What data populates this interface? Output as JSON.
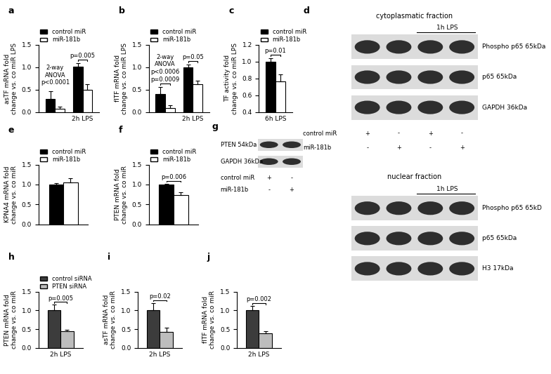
{
  "chart_data": [
    {
      "panel": "a",
      "type": "bar",
      "ylabel": "asTF mRNA fold\nchange vs. co miR LPS",
      "categories": [
        null,
        "2h LPS"
      ],
      "series": [
        {
          "name": "control miR",
          "color": "#000000",
          "values": [
            0.3,
            1.02
          ],
          "errors": [
            0.17,
            0.07
          ]
        },
        {
          "name": "miR-181b",
          "color": "#ffffff",
          "values": [
            0.08,
            0.5
          ],
          "errors": [
            0.05,
            0.13
          ]
        }
      ],
      "ylim": [
        0,
        1.5
      ],
      "yticks": [
        {
          "value": 0,
          "label": "0.0"
        },
        0.5,
        {
          "value": 1.0,
          "label": "1.0"
        },
        1.5
      ],
      "legend": "upper left",
      "note": {
        "text": "2-way\nANOVA\np<0.0001",
        "category": 0
      },
      "annotations": [
        {
          "text": "p=0.005",
          "category": 1
        }
      ]
    },
    {
      "panel": "b",
      "type": "bar",
      "ylabel": "flTF mRNA fold\nchange vs. co miR LPS",
      "categories": [
        null,
        "2h LPS"
      ],
      "series": [
        {
          "name": "control miR",
          "color": "#000000",
          "values": [
            0.41,
            1.0
          ],
          "errors": [
            0.15,
            0.06
          ]
        },
        {
          "name": "miR-181b",
          "color": "#ffffff",
          "values": [
            0.1,
            0.63
          ],
          "errors": [
            0.05,
            0.07
          ]
        }
      ],
      "ylim": [
        0,
        1.5
      ],
      "yticks": [
        {
          "value": 0,
          "label": "0.0"
        },
        0.5,
        {
          "value": 1.0,
          "label": "1.0"
        },
        1.5
      ],
      "legend": "upper left",
      "note": {
        "text": "2-way\nANOVA\np<0.0006",
        "category": 0
      },
      "annotations": [
        {
          "text": "p=0.0009",
          "category": 0
        },
        {
          "text": "p=0.05",
          "category": 1
        }
      ]
    },
    {
      "panel": "c",
      "type": "bar",
      "ylabel": "TF activity fold\nchange vs. co miR LPS",
      "categories": [
        "6h LPS"
      ],
      "series": [
        {
          "name": "control miR",
          "color": "#000000",
          "values": [
            1.0
          ],
          "errors": [
            0.04
          ]
        },
        {
          "name": "miR-181b",
          "color": "#ffffff",
          "values": [
            0.77
          ],
          "errors": [
            0.08
          ]
        }
      ],
      "ylim": [
        0.4,
        1.2
      ],
      "yticks": [
        0.4,
        0.6,
        0.8,
        {
          "value": 1.0,
          "label": "1.0"
        },
        1.2
      ],
      "legend": "upper left",
      "annotations": [
        {
          "text": "p=0.01",
          "category": 0
        }
      ]
    },
    {
      "panel": "e",
      "type": "bar",
      "ylabel": "KPNA4 mRNA fold\nchange vs. co miR",
      "categories": [
        null
      ],
      "series": [
        {
          "name": "control miR",
          "color": "#000000",
          "values": [
            1.0
          ],
          "errors": [
            0.03
          ]
        },
        {
          "name": "miR-181b",
          "color": "#ffffff",
          "values": [
            1.05
          ],
          "errors": [
            0.1
          ]
        }
      ],
      "ylim": [
        0,
        1.5
      ],
      "yticks": [
        {
          "value": 0,
          "label": "0.0"
        },
        0.5,
        {
          "value": 1.0,
          "label": "1.0"
        },
        1.5
      ],
      "legend": "upper left",
      "annotations": []
    },
    {
      "panel": "f",
      "type": "bar",
      "ylabel": "PTEN mRNA fold\nchange vs. co miR",
      "categories": [
        null
      ],
      "series": [
        {
          "name": "control miR",
          "color": "#000000",
          "values": [
            1.0
          ],
          "errors": [
            0.02
          ]
        },
        {
          "name": "miR-181b",
          "color": "#ffffff",
          "values": [
            0.73
          ],
          "errors": [
            0.08
          ]
        }
      ],
      "ylim": [
        0,
        1.5
      ],
      "yticks": [
        {
          "value": 0,
          "label": "0.0"
        },
        0.5,
        {
          "value": 1.0,
          "label": "1.0"
        },
        1.5
      ],
      "legend": "upper left",
      "annotations": [
        {
          "text": "p=0.006",
          "category": 0
        }
      ]
    },
    {
      "panel": "h",
      "type": "bar",
      "ylabel": "PTEN mRNA fold\nchange vs. co miR",
      "categories": [
        "2h LPS"
      ],
      "series": [
        {
          "name": "control siRNA",
          "color": "#3c3c3c",
          "values": [
            1.0
          ],
          "errors": [
            0.15
          ]
        },
        {
          "name": "PTEN siRNA",
          "color": "#bdbdbd",
          "values": [
            0.44
          ],
          "errors": [
            0.05
          ]
        }
      ],
      "ylim": [
        0,
        1.5
      ],
      "yticks": [
        {
          "value": 0,
          "label": "0.0"
        },
        0.5,
        {
          "value": 1.0,
          "label": "1.0"
        },
        1.5
      ],
      "legend": "upper left",
      "annotations": [
        {
          "text": "p=0.005",
          "category": 0
        }
      ]
    },
    {
      "panel": "i",
      "type": "bar",
      "ylabel": "asTF mRNA fold\nchange vs. co miR",
      "categories": [
        "2h LPS"
      ],
      "series": [
        {
          "color": "#3c3c3c",
          "values": [
            1.0
          ],
          "errors": [
            0.2
          ]
        },
        {
          "color": "#bdbdbd",
          "values": [
            0.42
          ],
          "errors": [
            0.12
          ]
        }
      ],
      "ylim": [
        0,
        1.5
      ],
      "yticks": [
        {
          "value": 0,
          "label": "0.0"
        },
        0.5,
        {
          "value": 1.0,
          "label": "1.0"
        },
        1.5
      ],
      "annotations": [
        {
          "text": "p=0.02",
          "category": 0
        }
      ]
    },
    {
      "panel": "j",
      "type": "bar",
      "ylabel": "flTF mRNA fold\nchange vs. co miR",
      "categories": [
        "2h LPS"
      ],
      "series": [
        {
          "color": "#3c3c3c",
          "values": [
            1.0
          ],
          "errors": [
            0.12
          ]
        },
        {
          "color": "#bdbdbd",
          "values": [
            0.39
          ],
          "errors": [
            0.05
          ]
        }
      ],
      "ylim": [
        0,
        1.5
      ],
      "yticks": [
        {
          "value": 0,
          "label": "0.0"
        },
        0.5,
        {
          "value": 1.0,
          "label": "1.0"
        },
        1.5
      ],
      "annotations": [
        {
          "text": "p=0.002",
          "category": 0
        }
      ]
    }
  ],
  "blots": [
    {
      "panel": "d",
      "sections": [
        {
          "title": "cytoplasmatic fraction",
          "treatment": "1h LPS",
          "rows": [
            "Phospho p65 65kDa",
            "p65 65kDa",
            "GAPDH 36kDa"
          ]
        },
        {
          "title": "nuclear fraction",
          "treatment": "1h LPS",
          "rows": [
            "Phospho p65 65kD",
            "p65 65kDa",
            "H3 17kDa"
          ]
        }
      ],
      "lane_labels": [
        {
          "name": "control miR",
          "marks": [
            "+",
            "-",
            "+",
            "-"
          ]
        },
        {
          "name": "miR-181b",
          "marks": [
            "-",
            "+",
            "-",
            "+"
          ]
        }
      ]
    },
    {
      "panel": "g",
      "sections": [
        {
          "rows": [
            "PTEN 54kDa",
            "GAPDH 36kDa"
          ]
        }
      ],
      "lane_labels": [
        {
          "name": "control miR",
          "marks": [
            "+",
            "-"
          ]
        },
        {
          "name": "miR-181b",
          "marks": [
            "-",
            "+"
          ]
        }
      ]
    }
  ]
}
